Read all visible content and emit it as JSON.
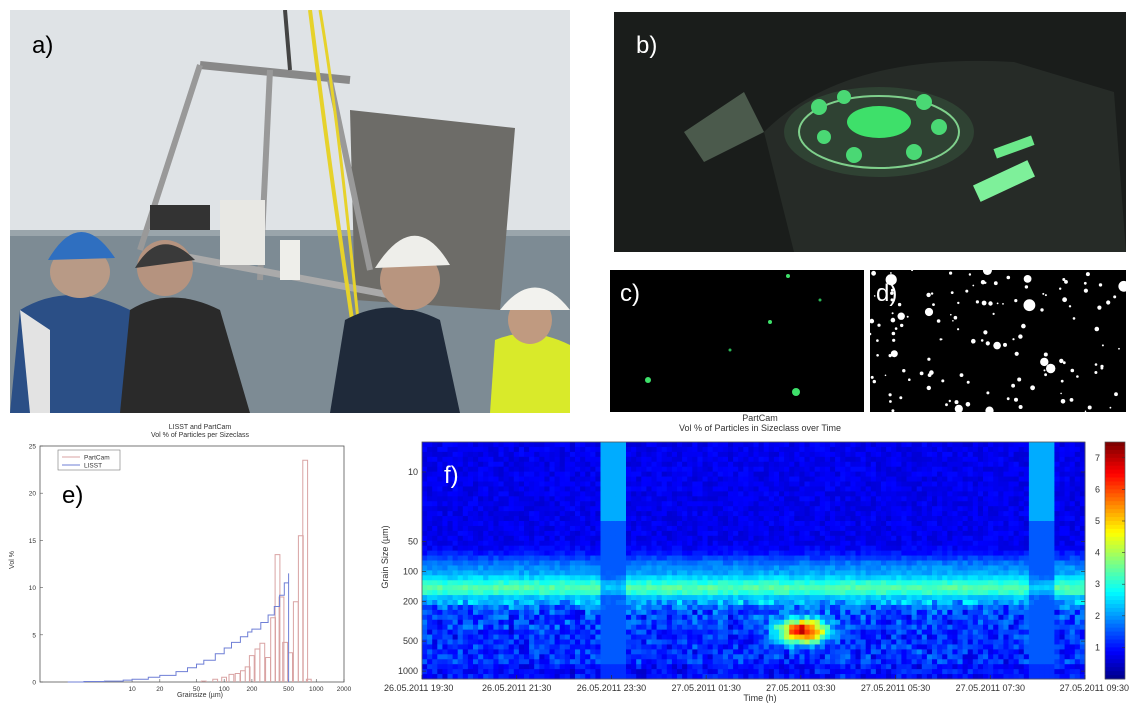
{
  "panels": {
    "a": {
      "label": "a)"
    },
    "b": {
      "label": "b)"
    },
    "c": {
      "label": "c)"
    },
    "d": {
      "label": "d)"
    },
    "e": {
      "label": "e)"
    },
    "f": {
      "label": "f)"
    }
  },
  "colors": {
    "sky": "#dfe3e6",
    "sea": "#7d8b94",
    "helmet_blue": "#2f6fc0",
    "helmet_white": "#eeeeea",
    "hivis": "#d9ea2a",
    "laser_green": "#3ee06a",
    "partcam_line": "#d9a3a3",
    "lisst_line": "#6f7fd6"
  },
  "chart_data": [
    {
      "id": "e",
      "type": "line",
      "title": "LISST and PartCam",
      "subtitle": "Vol % of Particles per Sizeclass",
      "xlabel": "Grainsize (µm)",
      "ylabel": "Vol %",
      "x_scale": "log",
      "xlim": [
        1,
        2000
      ],
      "ylim": [
        0,
        25
      ],
      "x_ticks": [
        10,
        20,
        50,
        100,
        200,
        500,
        1000,
        2000
      ],
      "y_ticks": [
        0,
        5,
        10,
        15,
        20,
        25
      ],
      "legend_position": "top-left",
      "series": [
        {
          "name": "PartCam",
          "color": "#d9a3a3",
          "x": [
            60,
            80,
            100,
            120,
            140,
            160,
            180,
            200,
            230,
            260,
            300,
            340,
            380,
            420,
            460,
            520,
            600,
            680,
            760,
            830
          ],
          "y": [
            0.1,
            0.3,
            0.5,
            0.8,
            0.9,
            1.2,
            1.6,
            2.8,
            3.5,
            4.1,
            2.6,
            6.8,
            13.5,
            9.0,
            4.2,
            3.1,
            8.5,
            15.5,
            23.5,
            0.3
          ]
        },
        {
          "name": "LISST",
          "color": "#6f7fd6",
          "x": [
            2,
            3,
            5,
            8,
            10,
            15,
            20,
            30,
            40,
            50,
            60,
            80,
            100,
            120,
            150,
            180,
            200,
            250,
            300,
            350,
            400,
            450,
            500
          ],
          "y": [
            0,
            0.05,
            0.1,
            0.2,
            0.3,
            0.5,
            0.7,
            1.1,
            1.5,
            1.9,
            2.3,
            3.0,
            3.6,
            4.2,
            4.8,
            5.3,
            5.6,
            6.3,
            7.1,
            8.0,
            9.2,
            10.5,
            11.5
          ]
        }
      ]
    },
    {
      "id": "f",
      "type": "heatmap",
      "title": "PartCam",
      "subtitle": "Vol % of Particles in Sizeclass over Time",
      "xlabel": "Time (h)",
      "ylabel": "Grain Size (µm)",
      "x_tick_labels": [
        "26.05.2011 19:30",
        "26.05.2011 21:30",
        "26.05.2011 23:30",
        "27.05.2011 01:30",
        "27.05.2011 03:30",
        "27.05.2011 05:30",
        "27.05.2011 07:30",
        "27.05.2011 09:30"
      ],
      "y_scale": "log",
      "y_tick_labels": [
        "10",
        "50",
        "100",
        "200",
        "500",
        "1000"
      ],
      "ylim": [
        5,
        1200
      ],
      "colorbar_ticks": [
        1,
        2,
        3,
        4,
        5,
        6,
        7
      ],
      "colorbar_range": [
        0,
        7.5
      ],
      "colormap": "jet",
      "features": {
        "main_band_grain_size_um": [
          100,
          200
        ],
        "peak_value": 7,
        "peak_time": "27.05.2011 02:30",
        "peak_grain_size_um": 400
      }
    }
  ]
}
